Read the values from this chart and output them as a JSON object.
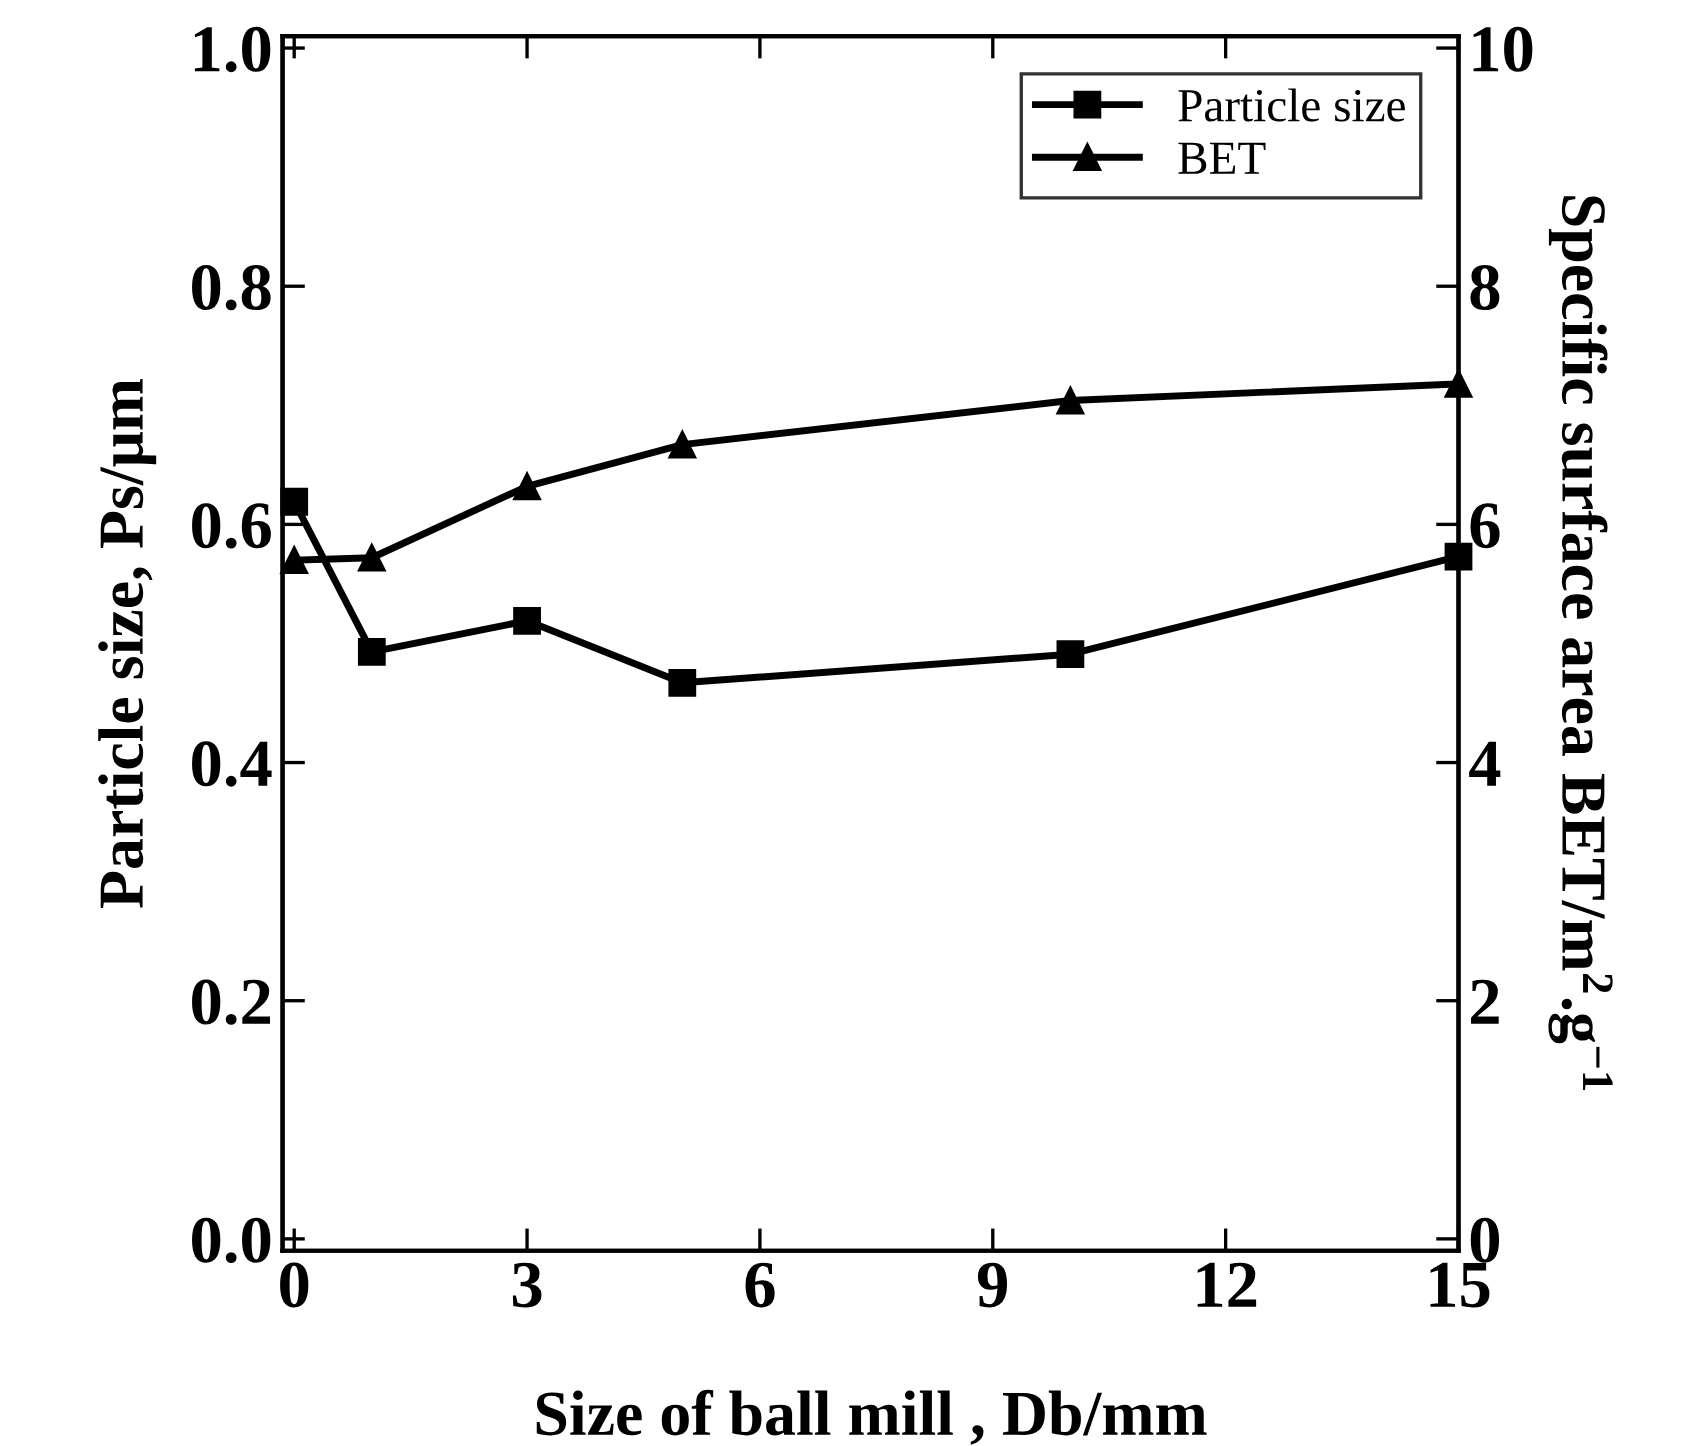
{
  "chart_data": {
    "type": "line",
    "xlabel": "Size of ball mill , Db/mm",
    "ylabel": "Particle size, Ps/μm",
    "y2label": "Specific surface area BET/m$^{2}$.g$^{−1}$",
    "x": [
      0,
      1,
      3,
      5,
      10,
      15
    ],
    "series": [
      {
        "name": "Particle size",
        "color": "#000000",
        "marker": "square",
        "values": [
          0.619,
          0.493,
          0.519,
          0.467,
          0.491,
          0.573
        ]
      },
      {
        "name": "BET",
        "color": "#000000",
        "marker": "triangle",
        "axis": "y2",
        "values": [
          5.7,
          5.72,
          6.32,
          6.67,
          7.04,
          7.18
        ]
      }
    ],
    "xlim": [
      -0.15,
      15
    ],
    "xticks": [
      0,
      3,
      6,
      9,
      12,
      15
    ],
    "ylim": [
      -0.01,
      1.01
    ],
    "yticks": [
      {
        "value": 0,
        "label": "0.0"
      },
      0.2,
      0.4,
      0.6,
      0.8,
      {
        "value": 1,
        "label": "1.0"
      }
    ],
    "y2lim": [
      -0.1,
      10.1
    ],
    "y2ticks": [
      0,
      2,
      4,
      6,
      8,
      10
    ],
    "grid": false,
    "legend": "top right",
    "line_style": "solid"
  }
}
